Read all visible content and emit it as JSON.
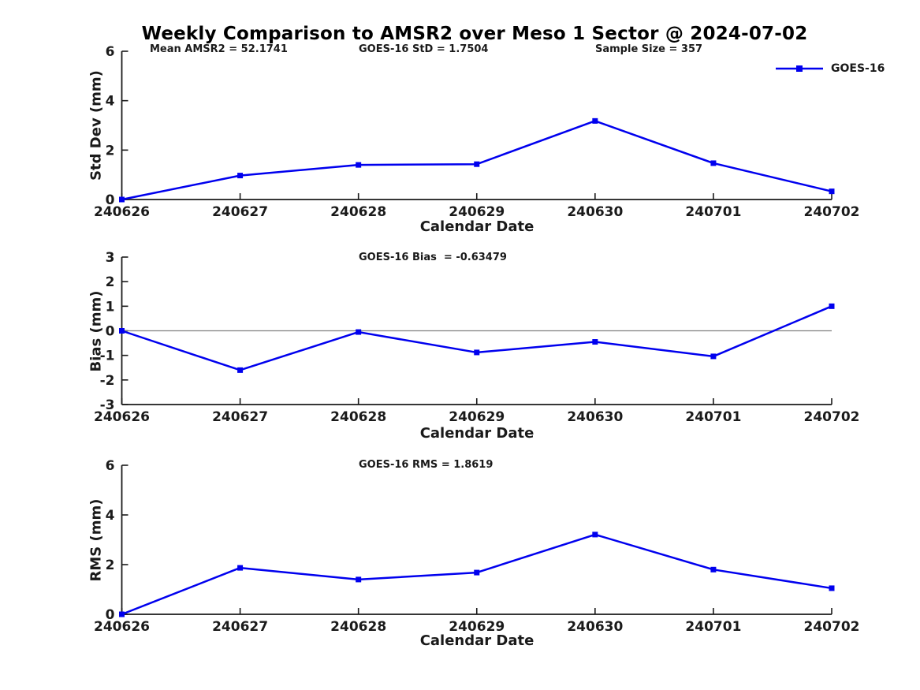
{
  "title": "Weekly Comparison to AMSR2 over Meso 1 Sector @ 2024-07-02",
  "legend": {
    "label": "GOES-16"
  },
  "colors": {
    "line": "#0000EE",
    "axis": "#1a1a1a",
    "zero_line": "#808080",
    "text": "#1a1a1a"
  },
  "chart_data": [
    {
      "type": "line",
      "ylabel": "Std Dev (mm)",
      "xlabel": "Calendar Date",
      "categories": [
        "240626",
        "240627",
        "240628",
        "240629",
        "240630",
        "240701",
        "240702"
      ],
      "series": [
        {
          "name": "GOES-16",
          "values": [
            0.0,
            0.97,
            1.4,
            1.43,
            3.18,
            1.47,
            0.33
          ]
        }
      ],
      "ylim": [
        0,
        6
      ],
      "yticks": [
        0,
        2,
        4,
        6
      ],
      "grid": false,
      "zero_line": false,
      "legend_position": "top-right",
      "annotations": [
        "Mean AMSR2 = 52.1741",
        "GOES-16 StD = 1.7504",
        "Sample Size = 357"
      ]
    },
    {
      "type": "line",
      "ylabel": "Bias (mm)",
      "xlabel": "Calendar Date",
      "categories": [
        "240626",
        "240627",
        "240628",
        "240629",
        "240630",
        "240701",
        "240702"
      ],
      "series": [
        {
          "name": "GOES-16",
          "values": [
            0.0,
            -1.6,
            -0.05,
            -0.88,
            -0.45,
            -1.04,
            1.0
          ]
        }
      ],
      "ylim": [
        -3,
        3
      ],
      "yticks": [
        3,
        2,
        1,
        0,
        -1,
        -2,
        -3
      ],
      "grid": false,
      "zero_line": true,
      "annotations": [
        "GOES-16 Bias  = -0.63479"
      ]
    },
    {
      "type": "line",
      "ylabel": "RMS (mm)",
      "xlabel": "Calendar Date",
      "categories": [
        "240626",
        "240627",
        "240628",
        "240629",
        "240630",
        "240701",
        "240702"
      ],
      "series": [
        {
          "name": "GOES-16",
          "values": [
            0.0,
            1.87,
            1.4,
            1.68,
            3.21,
            1.8,
            1.05
          ]
        }
      ],
      "ylim": [
        0,
        6
      ],
      "yticks": [
        0,
        2,
        4,
        6
      ],
      "grid": false,
      "zero_line": false,
      "annotations": [
        "GOES-16 RMS = 1.8619"
      ]
    }
  ]
}
